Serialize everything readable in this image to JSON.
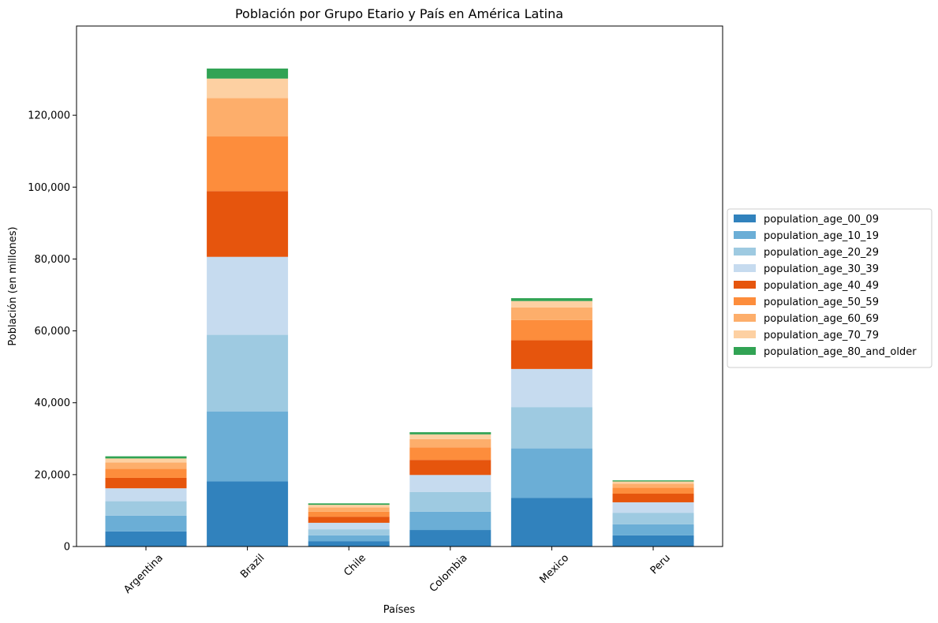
{
  "chart_data": {
    "type": "bar",
    "stacked": true,
    "title": "Población por Grupo Etario y País en América Latina",
    "xlabel": "Países",
    "ylabel": "Población (en millones)",
    "ylim": [
      0,
      140000
    ],
    "yticks": [
      0,
      20000,
      40000,
      60000,
      80000,
      100000,
      120000
    ],
    "ytick_labels": [
      "0",
      "20,000",
      "40,000",
      "60,000",
      "80,000",
      "100,000",
      "120,000"
    ],
    "grid": false,
    "legend_position": "center-right-outside",
    "categories": [
      "Argentina",
      "Brazil",
      "Chile",
      "Colombia",
      "Mexico",
      "Peru"
    ],
    "series": [
      {
        "name": "population_age_00_09",
        "color": "#3182bd",
        "values": [
          4200,
          18100,
          1500,
          4600,
          13500,
          3100
        ]
      },
      {
        "name": "population_age_10_19",
        "color": "#6baed6",
        "values": [
          4400,
          19500,
          1600,
          5100,
          13800,
          3100
        ]
      },
      {
        "name": "population_age_20_29",
        "color": "#9ecae1",
        "values": [
          4000,
          21300,
          1700,
          5500,
          11500,
          3200
        ]
      },
      {
        "name": "population_age_30_39",
        "color": "#c6dbef",
        "values": [
          3600,
          21700,
          1800,
          4700,
          10600,
          2900
        ]
      },
      {
        "name": "population_age_40_49",
        "color": "#e6550d",
        "values": [
          2900,
          18300,
          1700,
          4200,
          8000,
          2400
        ]
      },
      {
        "name": "population_age_50_59",
        "color": "#fd8d3c",
        "values": [
          2500,
          15200,
          1400,
          3500,
          5600,
          1700
        ]
      },
      {
        "name": "population_age_60_69",
        "color": "#fdae6b",
        "values": [
          1800,
          10700,
          1200,
          2300,
          3500,
          1100
        ]
      },
      {
        "name": "population_age_70_79",
        "color": "#fdd0a2",
        "values": [
          1100,
          5400,
          700,
          1300,
          1800,
          600
        ]
      },
      {
        "name": "population_age_80_and_older",
        "color": "#31a354",
        "values": [
          600,
          2800,
          400,
          600,
          800,
          300
        ]
      }
    ]
  }
}
